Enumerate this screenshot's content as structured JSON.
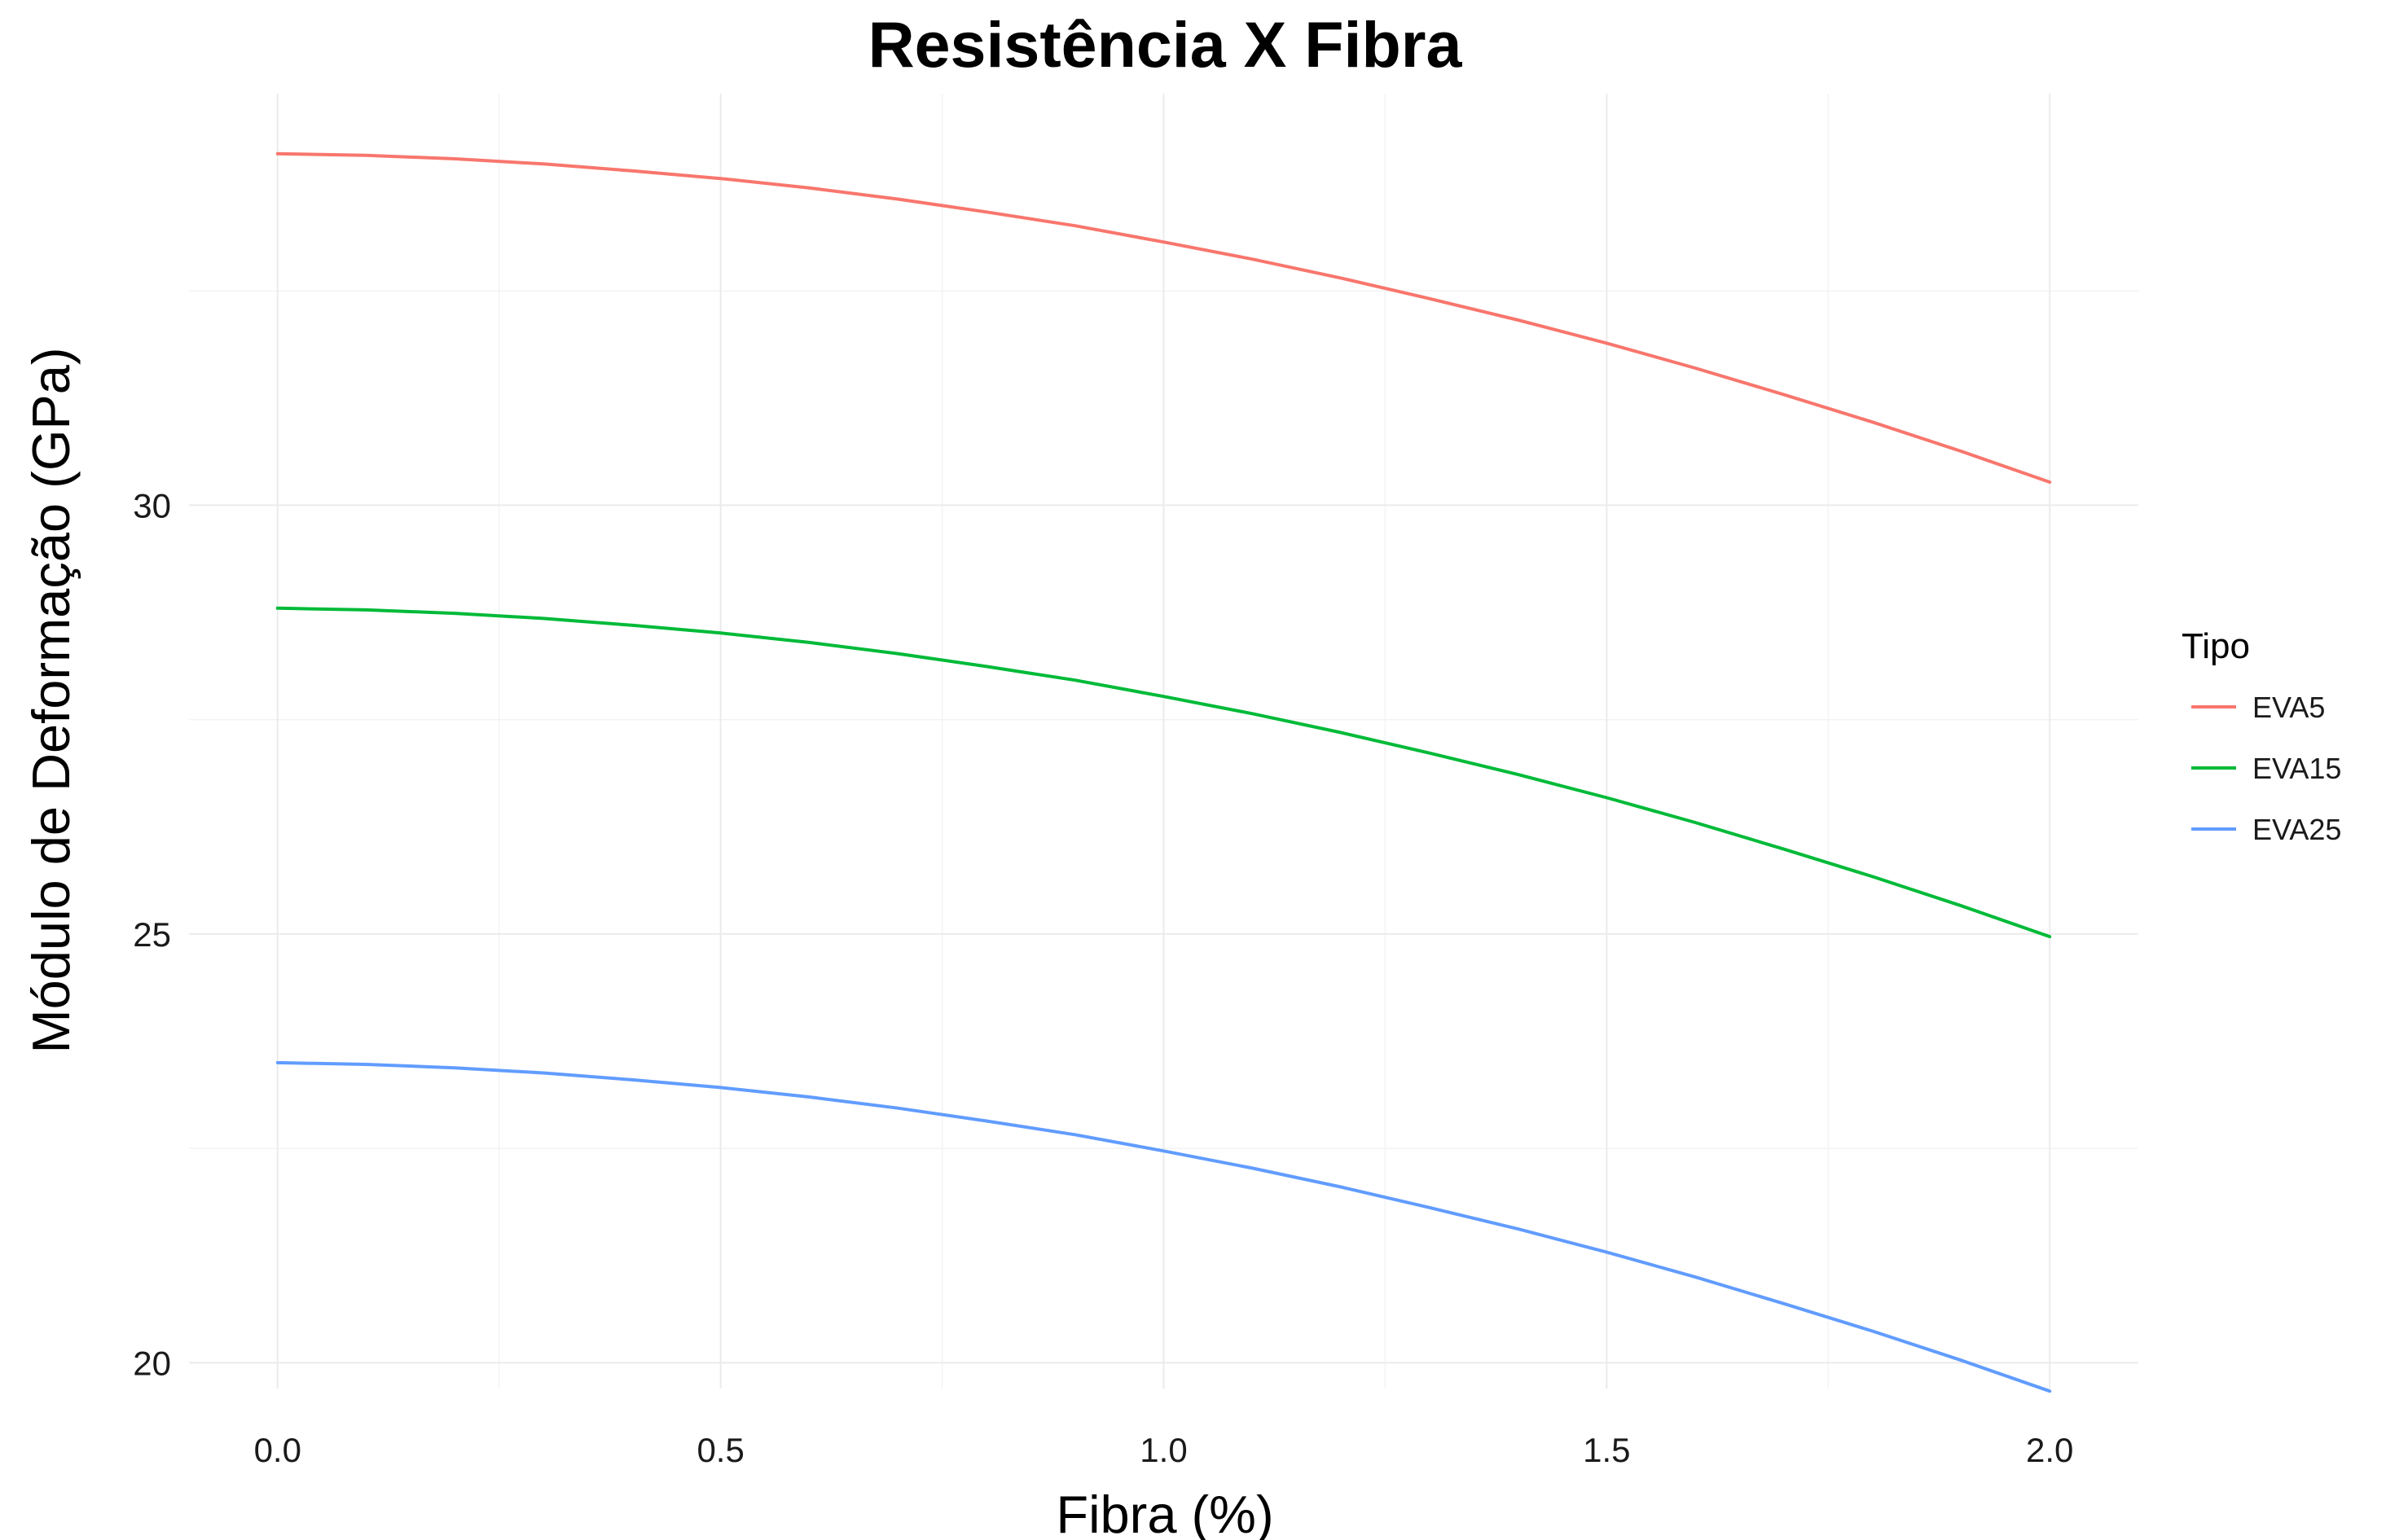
{
  "chart_data": {
    "type": "line",
    "title": "Resistência X Fibra",
    "xlabel": "Fibra (%)",
    "ylabel": "Módulo de Deformação (GPa)",
    "x": [
      0.0,
      0.1,
      0.2,
      0.3,
      0.4,
      0.5,
      0.6,
      0.7,
      0.8,
      0.9,
      1.0,
      1.1,
      1.2,
      1.3,
      1.4,
      1.5,
      1.6,
      1.7,
      1.8,
      1.9,
      2.0
    ],
    "series": [
      {
        "name": "EVA5",
        "color": "#F8766D",
        "values": [
          34.1,
          34.08,
          34.04,
          33.98,
          33.9,
          33.81,
          33.7,
          33.57,
          33.42,
          33.26,
          33.07,
          32.87,
          32.65,
          32.41,
          32.16,
          31.89,
          31.6,
          31.29,
          30.97,
          30.63,
          30.27
        ]
      },
      {
        "name": "EVA15",
        "color": "#00BA38",
        "values": [
          28.8,
          28.78,
          28.74,
          28.68,
          28.6,
          28.51,
          28.4,
          28.27,
          28.12,
          27.96,
          27.77,
          27.57,
          27.35,
          27.11,
          26.86,
          26.59,
          26.3,
          25.99,
          25.67,
          25.33,
          24.97
        ]
      },
      {
        "name": "EVA25",
        "color": "#619CFF",
        "values": [
          23.5,
          23.48,
          23.44,
          23.38,
          23.3,
          23.21,
          23.1,
          22.97,
          22.82,
          22.66,
          22.47,
          22.27,
          22.05,
          21.81,
          21.56,
          21.29,
          21.0,
          20.69,
          20.37,
          20.03,
          19.67
        ]
      }
    ],
    "xlim": [
      -0.1,
      2.1
    ],
    "ylim": [
      19.7,
      34.8
    ],
    "x_ticks": [
      0.0,
      0.5,
      1.0,
      1.5,
      2.0
    ],
    "x_tick_labels": [
      "0.0",
      "0.5",
      "1.0",
      "1.5",
      "2.0"
    ],
    "y_ticks": [
      20,
      25,
      30
    ],
    "y_tick_labels": [
      "20",
      "25",
      "30"
    ],
    "x_minor_ticks": [
      0.25,
      0.75,
      1.25,
      1.75
    ],
    "y_minor_ticks": [
      22.5,
      27.5,
      32.5
    ],
    "grid": true,
    "legend": {
      "title": "Tipo",
      "position": "right"
    }
  }
}
